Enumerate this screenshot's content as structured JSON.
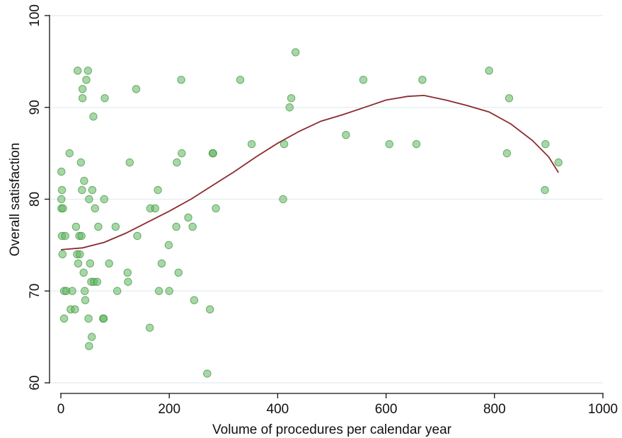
{
  "chart_data": {
    "type": "scatter",
    "xlabel": "Volume of procedures per calendar year",
    "ylabel": "Overall satisfaction",
    "xlim": [
      0,
      1000
    ],
    "ylim": [
      60,
      100
    ],
    "xticks": [
      0,
      200,
      400,
      600,
      800,
      1000
    ],
    "yticks": [
      60,
      70,
      80,
      90,
      100
    ],
    "xtick_labels": [
      "0",
      "200",
      "400",
      "600",
      "800",
      "1000"
    ],
    "ytick_labels": [
      "60",
      "70",
      "80",
      "90",
      "100"
    ],
    "grid": "horizontal",
    "colors": {
      "points": "#5cb85c",
      "points_edge": "#3f8f3f",
      "fit_line": "#8b2a2f",
      "grid": "#e4ecef",
      "axis": "#111111"
    },
    "series": [
      {
        "type": "scatter",
        "points": [
          [
            1,
            83
          ],
          [
            1,
            80
          ],
          [
            1,
            79
          ],
          [
            2,
            81
          ],
          [
            2,
            76
          ],
          [
            3,
            74
          ],
          [
            4,
            79
          ],
          [
            6,
            70
          ],
          [
            6,
            67
          ],
          [
            8,
            76
          ],
          [
            10,
            70
          ],
          [
            16,
            85
          ],
          [
            18,
            68
          ],
          [
            21,
            70
          ],
          [
            26,
            68
          ],
          [
            28,
            77
          ],
          [
            30,
            74
          ],
          [
            31,
            94
          ],
          [
            32,
            73
          ],
          [
            34,
            76
          ],
          [
            35,
            74
          ],
          [
            37,
            84
          ],
          [
            38,
            76
          ],
          [
            39,
            81
          ],
          [
            40,
            92
          ],
          [
            40,
            91
          ],
          [
            42,
            72
          ],
          [
            43,
            82
          ],
          [
            44,
            70
          ],
          [
            45,
            69
          ],
          [
            47,
            93
          ],
          [
            50,
            94
          ],
          [
            51,
            67
          ],
          [
            52,
            64
          ],
          [
            52,
            80
          ],
          [
            54,
            73
          ],
          [
            56,
            71
          ],
          [
            57,
            65
          ],
          [
            58,
            81
          ],
          [
            60,
            89
          ],
          [
            61,
            71
          ],
          [
            63,
            79
          ],
          [
            67,
            71
          ],
          [
            69,
            77
          ],
          [
            78,
            67
          ],
          [
            79,
            67
          ],
          [
            80,
            80
          ],
          [
            81,
            91
          ],
          [
            89,
            73
          ],
          [
            101,
            77
          ],
          [
            104,
            70
          ],
          [
            123,
            72
          ],
          [
            124,
            71
          ],
          [
            127,
            84
          ],
          [
            139,
            92
          ],
          [
            141,
            76
          ],
          [
            164,
            66
          ],
          [
            165,
            79
          ],
          [
            174,
            79
          ],
          [
            179,
            81
          ],
          [
            181,
            70
          ],
          [
            186,
            73
          ],
          [
            199,
            75
          ],
          [
            200,
            70
          ],
          [
            213,
            77
          ],
          [
            214,
            84
          ],
          [
            217,
            72
          ],
          [
            222,
            93
          ],
          [
            223,
            85
          ],
          [
            235,
            78
          ],
          [
            243,
            77
          ],
          [
            246,
            69
          ],
          [
            270,
            61
          ],
          [
            275,
            68
          ],
          [
            280,
            85
          ],
          [
            281,
            85
          ],
          [
            286,
            79
          ],
          [
            331,
            93
          ],
          [
            352,
            86
          ],
          [
            410,
            80
          ],
          [
            412,
            86
          ],
          [
            422,
            90
          ],
          [
            425,
            91
          ],
          [
            433,
            96
          ],
          [
            526,
            87
          ],
          [
            558,
            93
          ],
          [
            606,
            86
          ],
          [
            656,
            86
          ],
          [
            667,
            93
          ],
          [
            790,
            94
          ],
          [
            823,
            85
          ],
          [
            827,
            91
          ],
          [
            893,
            81
          ],
          [
            894,
            86
          ],
          [
            918,
            84
          ]
        ]
      },
      {
        "type": "line",
        "points": [
          [
            0,
            74.5
          ],
          [
            40,
            74.7
          ],
          [
            80,
            75.3
          ],
          [
            120,
            76.3
          ],
          [
            160,
            77.5
          ],
          [
            200,
            78.7
          ],
          [
            240,
            80
          ],
          [
            280,
            81.5
          ],
          [
            320,
            83
          ],
          [
            360,
            84.6
          ],
          [
            400,
            86.1
          ],
          [
            440,
            87.4
          ],
          [
            480,
            88.5
          ],
          [
            520,
            89.2
          ],
          [
            560,
            90
          ],
          [
            600,
            90.8
          ],
          [
            640,
            91.2
          ],
          [
            670,
            91.3
          ],
          [
            710,
            90.8
          ],
          [
            750,
            90.2
          ],
          [
            790,
            89.5
          ],
          [
            830,
            88.2
          ],
          [
            870,
            86.4
          ],
          [
            900,
            84.6
          ],
          [
            918,
            82.9
          ]
        ]
      }
    ]
  }
}
